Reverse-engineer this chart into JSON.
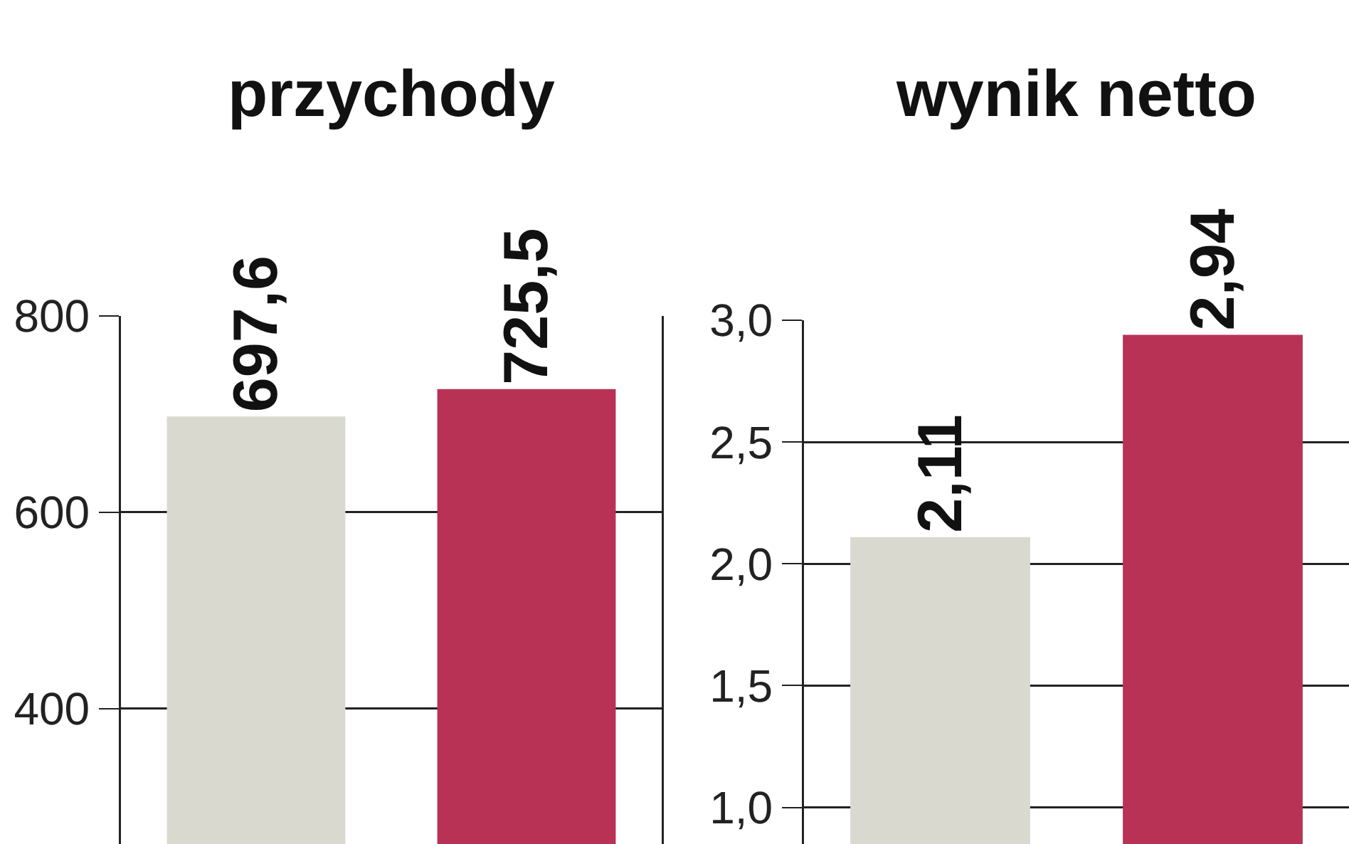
{
  "chart_data": [
    {
      "type": "bar",
      "title": "przychody",
      "categories": [
        null,
        null
      ],
      "values": [
        697.6,
        725.5
      ],
      "colors": [
        "#d9d9d0",
        "#b83256"
      ],
      "value_labels": [
        "697,6",
        "725,5"
      ],
      "ylim": [
        262,
        800
      ],
      "yticks": [
        400,
        600,
        800
      ],
      "grid": "y"
    },
    {
      "type": "bar",
      "title": "wynik netto",
      "categories": [
        null,
        null
      ],
      "values": [
        2.11,
        2.94
      ],
      "colors": [
        "#d9d9d0",
        "#b83256"
      ],
      "value_labels": [
        "2,11",
        "2,94"
      ],
      "ylim": [
        0.85,
        3.0
      ],
      "yticks": [
        {
          "value": 1.0,
          "label": "1,0"
        },
        {
          "value": 1.5,
          "label": "1,5"
        },
        {
          "value": 2.0,
          "label": "2,0"
        },
        {
          "value": 2.5,
          "label": "2,5"
        },
        {
          "value": 3.0,
          "label": "3,0"
        }
      ],
      "grid": "y"
    }
  ]
}
